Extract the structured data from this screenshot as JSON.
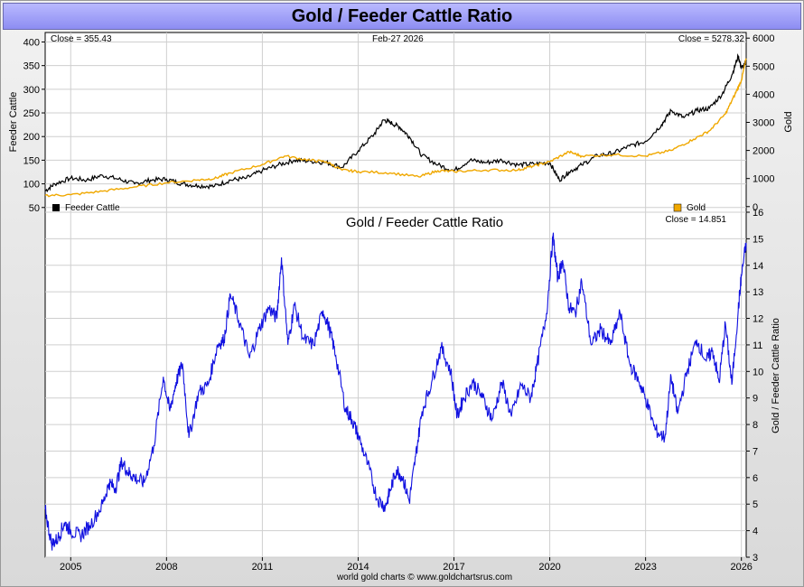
{
  "page_title": "Gold / Feeder Cattle Ratio",
  "footer": "world gold charts © www.goldchartsrus.com",
  "colors": {
    "cattle": "#000000",
    "gold": "#f0a800",
    "ratio": "#1010e0",
    "grid": "#cfcfcf"
  },
  "chart_data": [
    {
      "type": "line",
      "title": "",
      "date_label": "Feb-27  2026",
      "close_left": "Close = 355.43",
      "close_right": "Close = 5278.32",
      "ylabel_left": "Feeder Cattle",
      "ylabel_right": "Gold",
      "ylim_left": [
        40,
        420
      ],
      "ylim_right": [
        -200,
        6200
      ],
      "yticks_left": [
        50,
        100,
        150,
        200,
        250,
        300,
        350,
        400
      ],
      "yticks_right": [
        0,
        1000,
        2000,
        3000,
        4000,
        5000,
        6000
      ],
      "legend_left": "Feeder Cattle",
      "legend_right": "Gold",
      "series": [
        {
          "name": "Feeder Cattle",
          "axis": "left",
          "x": [
            2004.2,
            2004.5,
            2005.0,
            2005.5,
            2006.0,
            2006.5,
            2007.0,
            2007.5,
            2008.0,
            2008.5,
            2009.0,
            2009.5,
            2010.0,
            2010.5,
            2011.0,
            2011.5,
            2012.0,
            2012.5,
            2013.0,
            2013.5,
            2014.0,
            2014.5,
            2014.8,
            2015.0,
            2015.3,
            2015.6,
            2016.0,
            2016.5,
            2017.0,
            2017.5,
            2018.0,
            2018.5,
            2019.0,
            2019.5,
            2020.0,
            2020.3,
            2020.6,
            2021.0,
            2021.5,
            2022.0,
            2022.5,
            2023.0,
            2023.5,
            2023.8,
            2024.2,
            2024.6,
            2025.0,
            2025.4,
            2025.7,
            2025.9,
            2026.0,
            2026.15
          ],
          "values": [
            85,
            100,
            112,
            108,
            118,
            110,
            100,
            108,
            110,
            100,
            96,
            95,
            108,
            112,
            128,
            140,
            150,
            148,
            145,
            135,
            170,
            205,
            235,
            230,
            220,
            200,
            160,
            140,
            128,
            150,
            145,
            150,
            140,
            142,
            145,
            108,
            125,
            140,
            160,
            165,
            180,
            190,
            225,
            255,
            240,
            255,
            260,
            290,
            330,
            370,
            345,
            355
          ]
        },
        {
          "name": "Gold",
          "axis": "right",
          "x": [
            2004.2,
            2005.0,
            2006.0,
            2007.0,
            2008.0,
            2009.0,
            2009.5,
            2010.0,
            2011.0,
            2011.7,
            2012.5,
            2013.0,
            2013.5,
            2014.0,
            2015.0,
            2015.9,
            2016.5,
            2017.0,
            2018.0,
            2019.0,
            2019.5,
            2020.0,
            2020.6,
            2021.0,
            2022.0,
            2023.0,
            2023.8,
            2024.5,
            2025.0,
            2025.5,
            2025.8,
            2026.0,
            2026.15
          ],
          "values": [
            400,
            420,
            550,
            700,
            850,
            950,
            1000,
            1200,
            1500,
            1800,
            1650,
            1600,
            1300,
            1250,
            1200,
            1060,
            1280,
            1250,
            1300,
            1300,
            1450,
            1600,
            1950,
            1800,
            1850,
            1800,
            2000,
            2400,
            2700,
            3300,
            4000,
            4500,
            5278
          ]
        }
      ]
    },
    {
      "type": "line",
      "title": "Gold  /  Feeder Cattle Ratio",
      "close": "Close = 14.851",
      "ylabel_right": "Gold / Feeder Cattle Ratio",
      "ylim": [
        3,
        16
      ],
      "yticks": [
        3,
        4,
        5,
        6,
        7,
        8,
        9,
        10,
        11,
        12,
        13,
        14,
        15,
        16
      ],
      "xlim": [
        2004.2,
        2026.15
      ],
      "xticks": [
        "2005",
        "2008",
        "2011",
        "2014",
        "2017",
        "2020",
        "2023",
        "2026"
      ],
      "series": [
        {
          "name": "Gold / Feeder Cattle Ratio",
          "x": [
            2004.2,
            2004.4,
            2004.6,
            2004.8,
            2005.0,
            2005.3,
            2005.6,
            2006.0,
            2006.2,
            2006.4,
            2006.6,
            2006.8,
            2007.0,
            2007.3,
            2007.6,
            2007.9,
            2008.1,
            2008.3,
            2008.5,
            2008.7,
            2009.0,
            2009.3,
            2009.6,
            2009.8,
            2010.0,
            2010.3,
            2010.6,
            2010.9,
            2011.2,
            2011.45,
            2011.6,
            2011.8,
            2012.0,
            2012.3,
            2012.6,
            2012.9,
            2013.1,
            2013.3,
            2013.6,
            2013.8,
            2014.0,
            2014.3,
            2014.6,
            2014.85,
            2015.0,
            2015.2,
            2015.4,
            2015.6,
            2015.8,
            2016.0,
            2016.3,
            2016.6,
            2016.9,
            2017.1,
            2017.3,
            2017.6,
            2017.9,
            2018.2,
            2018.5,
            2018.8,
            2019.1,
            2019.4,
            2019.6,
            2019.9,
            2020.1,
            2020.25,
            2020.4,
            2020.6,
            2020.8,
            2021.0,
            2021.3,
            2021.6,
            2021.9,
            2022.2,
            2022.5,
            2022.8,
            2023.0,
            2023.3,
            2023.6,
            2023.8,
            2024.0,
            2024.3,
            2024.6,
            2024.9,
            2025.1,
            2025.3,
            2025.5,
            2025.7,
            2025.9,
            2026.0,
            2026.15
          ],
          "values": [
            4.8,
            3.5,
            3.7,
            4.3,
            4.0,
            3.8,
            4.2,
            5.0,
            5.8,
            5.6,
            6.6,
            6.2,
            6.0,
            5.8,
            7.2,
            9.8,
            8.5,
            9.6,
            10.3,
            7.5,
            9.2,
            9.5,
            11.0,
            11.2,
            12.9,
            11.8,
            10.5,
            11.6,
            12.4,
            12.0,
            14.3,
            11.0,
            12.5,
            11.2,
            11.0,
            12.3,
            11.6,
            10.6,
            8.6,
            8.2,
            7.6,
            6.5,
            5.2,
            4.9,
            5.5,
            6.3,
            6.0,
            5.1,
            6.8,
            8.5,
            9.6,
            10.9,
            10.0,
            8.3,
            9.0,
            9.6,
            9.0,
            8.2,
            9.6,
            8.3,
            9.5,
            9.0,
            10.2,
            12.2,
            15.1,
            13.5,
            14.2,
            12.4,
            12.2,
            13.4,
            11.0,
            11.6,
            11.0,
            12.2,
            10.3,
            9.6,
            9.0,
            7.8,
            7.5,
            9.8,
            8.4,
            10.0,
            11.2,
            10.4,
            10.8,
            9.6,
            11.8,
            9.5,
            12.3,
            13.6,
            14.85
          ]
        }
      ]
    }
  ]
}
